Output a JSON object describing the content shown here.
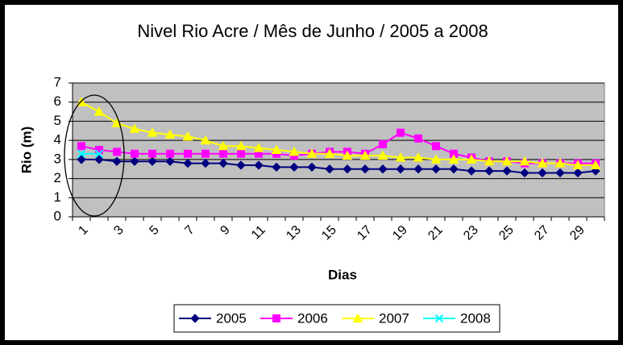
{
  "chart_data": {
    "type": "line",
    "title": "Nivel Rio Acre / Mês de Junho / 2005 a 2008",
    "x_label": "Dias",
    "y_label": "Rio (m)",
    "categories": [
      "1",
      null,
      "3",
      null,
      "5",
      null,
      "7",
      null,
      "9",
      null,
      "11",
      null,
      "13",
      null,
      "15",
      null,
      "17",
      null,
      "19",
      null,
      "21",
      null,
      "23",
      null,
      "25",
      null,
      "27",
      null,
      "29",
      null
    ],
    "ylim": [
      0,
      7
    ],
    "yticks": [
      0,
      1,
      2,
      3,
      4,
      5,
      6,
      7
    ],
    "grid": true,
    "legend": "bottom",
    "series": [
      {
        "name": "2005",
        "color": "#000080",
        "marker": "diamond",
        "values": [
          3.0,
          3.0,
          2.9,
          2.9,
          2.9,
          2.9,
          2.8,
          2.8,
          2.8,
          2.7,
          2.7,
          2.6,
          2.6,
          2.6,
          2.5,
          2.5,
          2.5,
          2.5,
          2.5,
          2.5,
          2.5,
          2.5,
          2.4,
          2.4,
          2.4,
          2.3,
          2.3,
          2.3,
          2.3,
          2.4
        ]
      },
      {
        "name": "2006",
        "color": "#ff00ff",
        "marker": "square",
        "values": [
          3.7,
          3.5,
          3.4,
          3.3,
          3.3,
          3.3,
          3.3,
          3.3,
          3.3,
          3.3,
          3.3,
          3.3,
          3.2,
          3.3,
          3.4,
          3.4,
          3.3,
          3.8,
          4.4,
          4.1,
          3.7,
          3.3,
          3.1,
          2.9,
          2.9,
          2.8,
          2.8,
          2.8,
          2.8,
          2.8
        ]
      },
      {
        "name": "2007",
        "color": "#ffff00",
        "marker": "triangle",
        "values": [
          6.0,
          5.5,
          4.9,
          4.6,
          4.4,
          4.3,
          4.2,
          4.0,
          3.7,
          3.7,
          3.6,
          3.5,
          3.4,
          3.3,
          3.3,
          3.2,
          3.2,
          3.2,
          3.1,
          3.1,
          3.0,
          3.0,
          3.0,
          2.9,
          2.9,
          2.9,
          2.8,
          2.8,
          2.7,
          2.7
        ]
      },
      {
        "name": "2008",
        "color": "#00ffff",
        "marker": "x",
        "values": [
          3.3,
          3.3,
          null,
          null,
          null,
          null,
          null,
          null,
          null,
          null,
          null,
          null,
          null,
          null,
          null,
          null,
          null,
          null,
          null,
          null,
          null,
          null,
          null,
          null,
          null,
          null,
          null,
          null,
          null,
          null
        ]
      }
    ]
  }
}
